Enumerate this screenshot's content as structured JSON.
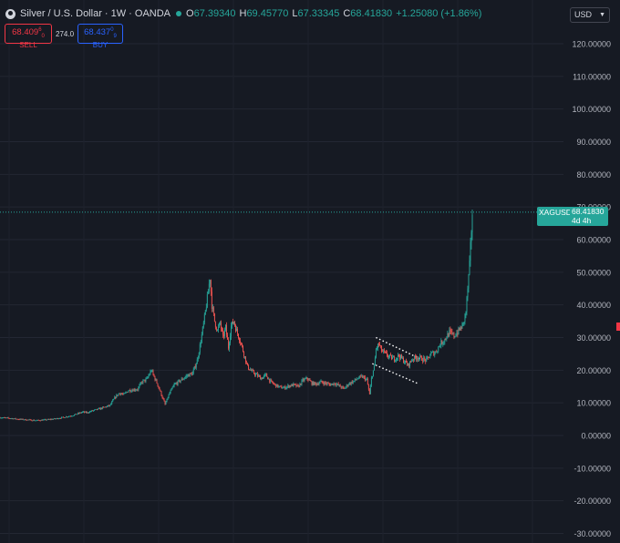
{
  "header": {
    "symbol": "Silver / U.S. Dollar · 1W · OANDA",
    "open_label": "O",
    "open": "67.39340",
    "high_label": "H",
    "high": "69.45770",
    "low_label": "L",
    "low": "67.33345",
    "close_label": "C",
    "close": "68.41830",
    "change": "+1.25080 (+1.86%)"
  },
  "trade": {
    "sell_price": "68.409",
    "sell_price_sup": "6",
    "sell_sub": "0",
    "sell_label": "SELL",
    "spread": "274.0",
    "buy_price": "68.437",
    "buy_sup": "0",
    "buy_sub": "9",
    "buy_label": "BUY"
  },
  "currency": {
    "label": "USD"
  },
  "price_tag": {
    "symbol": "XAGUSD",
    "price": "68.41830",
    "countdown": "4d 4h"
  },
  "colors": {
    "up": "#26a69a",
    "down": "#ef5350",
    "background": "#161a23",
    "grid": "#2a2e39",
    "text": "#b2b5be"
  },
  "chart_data": {
    "type": "candlestick",
    "title": "Silver / U.S. Dollar · 1W · OANDA",
    "y_scale": "linear",
    "ylim": [
      -30,
      125
    ],
    "y_ticks": [
      "120.00000",
      "110.00000",
      "100.00000",
      "90.00000",
      "80.00000",
      "70.00000",
      "60.00000",
      "50.00000",
      "40.00000",
      "30.00000",
      "20.00000",
      "10.00000",
      "0.00000",
      "-10.00000",
      "-20.00000",
      "-30.00000"
    ],
    "grid": true,
    "last_price": 68.4183,
    "series": [
      {
        "name": "price",
        "points": [
          [
            0,
            5.5
          ],
          [
            10,
            5.3
          ],
          [
            20,
            5.0
          ],
          [
            30,
            4.8
          ],
          [
            40,
            4.6
          ],
          [
            50,
            4.8
          ],
          [
            60,
            5.1
          ],
          [
            70,
            5.6
          ],
          [
            80,
            6.2
          ],
          [
            90,
            7.2
          ],
          [
            95,
            7.0
          ],
          [
            100,
            7.5
          ],
          [
            110,
            8.3
          ],
          [
            120,
            9.2
          ],
          [
            125,
            11.5
          ],
          [
            130,
            13.0
          ],
          [
            135,
            12.5
          ],
          [
            140,
            13.8
          ],
          [
            150,
            14.2
          ],
          [
            155,
            16.5
          ],
          [
            160,
            17.2
          ],
          [
            165,
            20.0
          ],
          [
            168,
            18.0
          ],
          [
            172,
            15.5
          ],
          [
            176,
            12.5
          ],
          [
            180,
            9.5
          ],
          [
            185,
            13.0
          ],
          [
            190,
            15.5
          ],
          [
            195,
            16.5
          ],
          [
            200,
            17.5
          ],
          [
            205,
            18.5
          ],
          [
            210,
            19.0
          ],
          [
            215,
            23.0
          ],
          [
            219,
            29.0
          ],
          [
            223,
            36.0
          ],
          [
            226,
            42.0
          ],
          [
            229,
            48.5
          ],
          [
            231,
            40.0
          ],
          [
            234,
            35.0
          ],
          [
            237,
            32.0
          ],
          [
            240,
            34.5
          ],
          [
            243,
            30.0
          ],
          [
            246,
            33.0
          ],
          [
            249,
            27.0
          ],
          [
            252,
            33.5
          ],
          [
            255,
            35.0
          ],
          [
            258,
            32.0
          ],
          [
            262,
            29.0
          ],
          [
            265,
            26.0
          ],
          [
            270,
            21.0
          ],
          [
            275,
            19.5
          ],
          [
            280,
            18.5
          ],
          [
            285,
            17.5
          ],
          [
            290,
            18.5
          ],
          [
            295,
            16.5
          ],
          [
            300,
            15.5
          ],
          [
            305,
            14.8
          ],
          [
            310,
            14.6
          ],
          [
            315,
            15.2
          ],
          [
            320,
            15.5
          ],
          [
            325,
            14.9
          ],
          [
            330,
            16.8
          ],
          [
            335,
            17.5
          ],
          [
            340,
            16.0
          ],
          [
            345,
            15.8
          ],
          [
            350,
            16.4
          ],
          [
            355,
            16.0
          ],
          [
            360,
            15.6
          ],
          [
            365,
            16.0
          ],
          [
            370,
            15.2
          ],
          [
            375,
            14.3
          ],
          [
            380,
            15.8
          ],
          [
            385,
            16.5
          ],
          [
            390,
            17.5
          ],
          [
            395,
            18.0
          ],
          [
            400,
            17.0
          ],
          [
            403,
            12.5
          ],
          [
            405,
            17.5
          ],
          [
            408,
            21.0
          ],
          [
            410,
            26.5
          ],
          [
            413,
            28.0
          ],
          [
            416,
            26.0
          ],
          [
            420,
            25.0
          ],
          [
            425,
            24.0
          ],
          [
            430,
            23.5
          ],
          [
            435,
            24.5
          ],
          [
            440,
            23.0
          ],
          [
            445,
            21.5
          ],
          [
            450,
            23.5
          ],
          [
            455,
            24.0
          ],
          [
            460,
            23.5
          ],
          [
            465,
            23.0
          ],
          [
            470,
            25.0
          ],
          [
            475,
            25.5
          ],
          [
            480,
            28.0
          ],
          [
            485,
            29.5
          ],
          [
            490,
            31.5
          ],
          [
            495,
            30.5
          ],
          [
            500,
            32.0
          ],
          [
            505,
            34.0
          ],
          [
            508,
            38.0
          ],
          [
            510,
            45.0
          ],
          [
            512,
            52.0
          ],
          [
            514,
            63.0
          ],
          [
            515,
            68.42
          ]
        ]
      }
    ],
    "annotations": [
      {
        "type": "channel",
        "lines": [
          [
            [
              410,
              30
            ],
            [
              458,
              23.5
            ]
          ],
          [
            [
              406,
              22
            ],
            [
              455,
              16
            ]
          ]
        ]
      }
    ]
  }
}
